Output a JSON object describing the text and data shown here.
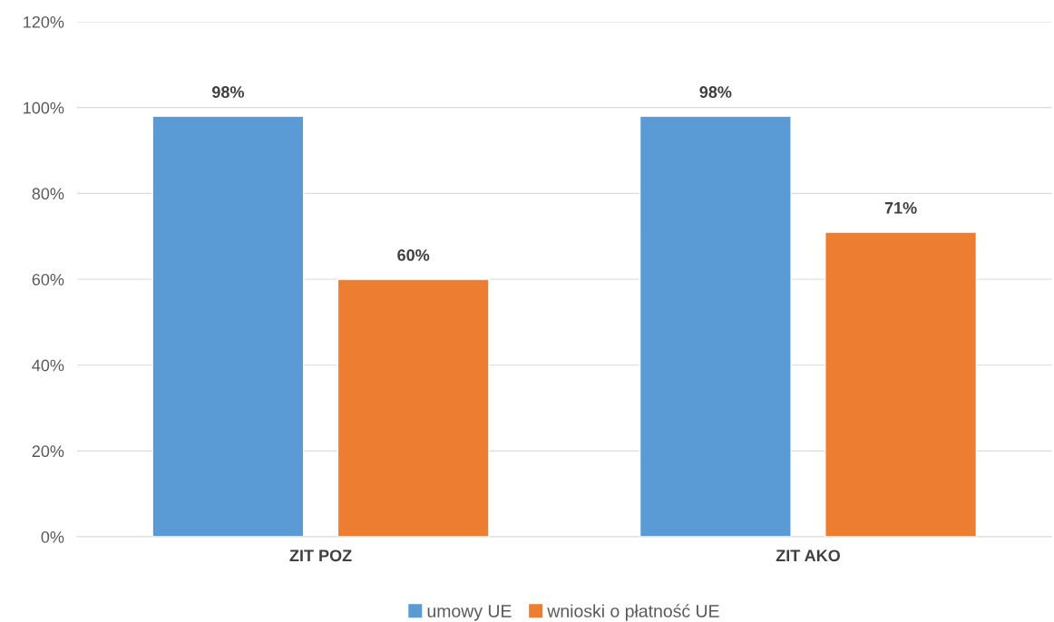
{
  "chart_data": {
    "type": "bar",
    "categories": [
      "ZIT POZ",
      "ZIT AKO"
    ],
    "series": [
      {
        "name": "umowy UE",
        "color": "#5b9bd5",
        "values": [
          98,
          98
        ],
        "value_labels": [
          "98%",
          "98%"
        ]
      },
      {
        "name": "wnioski o płatność UE",
        "color": "#ed7d31",
        "values": [
          60,
          71
        ],
        "value_labels": [
          "60%",
          "71%"
        ]
      }
    ],
    "ylim": [
      0,
      120
    ],
    "yticks": [
      {
        "value": 0,
        "label": "0%"
      },
      {
        "value": 20,
        "label": "20%"
      },
      {
        "value": 40,
        "label": "40%"
      },
      {
        "value": 60,
        "label": "60%"
      },
      {
        "value": 80,
        "label": "80%"
      },
      {
        "value": 100,
        "label": "100%"
      },
      {
        "value": 120,
        "label": "120%"
      }
    ],
    "grid": "y",
    "legend": "bottom"
  }
}
